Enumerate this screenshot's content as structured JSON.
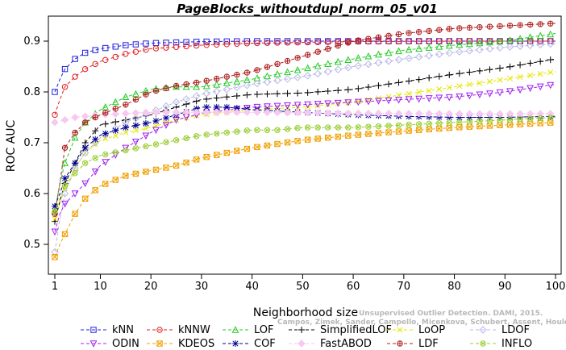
{
  "chart_data": {
    "type": "line",
    "title": "PageBlocks_withoutdupl_norm_05_v01",
    "xlabel": "Neighborhood size",
    "ylabel": "ROC AUC",
    "xlim": [
      0,
      100
    ],
    "ylim": [
      0.47,
      0.95
    ],
    "xticks": [
      1,
      10,
      20,
      30,
      40,
      50,
      60,
      70,
      80,
      90,
      100
    ],
    "yticks": [
      0.5,
      0.6,
      0.7,
      0.8,
      0.9
    ],
    "grid": false,
    "legend_position": "bottom",
    "watermark": [
      "Campos, Zimek, Sander, Campello, Micenkova, Schubert, Assent, Houle",
      "Unsupervised Outlier Detection. DAMI, 2015."
    ],
    "series": [
      {
        "name": "kNN",
        "color": "#1f1fe0",
        "marker": "square",
        "points": [
          [
            1,
            0.8
          ],
          [
            2,
            0.825
          ],
          [
            3,
            0.845
          ],
          [
            5,
            0.865
          ],
          [
            7,
            0.877
          ],
          [
            10,
            0.885
          ],
          [
            15,
            0.892
          ],
          [
            20,
            0.896
          ],
          [
            30,
            0.899
          ],
          [
            40,
            0.9
          ],
          [
            60,
            0.9
          ],
          [
            80,
            0.9
          ],
          [
            100,
            0.9
          ]
        ]
      },
      {
        "name": "kNNW",
        "color": "#e01f1f",
        "marker": "circle",
        "points": [
          [
            1,
            0.755
          ],
          [
            2,
            0.785
          ],
          [
            3,
            0.81
          ],
          [
            5,
            0.83
          ],
          [
            7,
            0.845
          ],
          [
            10,
            0.86
          ],
          [
            15,
            0.875
          ],
          [
            20,
            0.885
          ],
          [
            30,
            0.892
          ],
          [
            40,
            0.896
          ],
          [
            60,
            0.899
          ],
          [
            80,
            0.9
          ],
          [
            100,
            0.9
          ]
        ]
      },
      {
        "name": "LOF",
        "color": "#22cc22",
        "marker": "triangle-up",
        "points": [
          [
            1,
            0.565
          ],
          [
            2,
            0.62
          ],
          [
            3,
            0.66
          ],
          [
            5,
            0.71
          ],
          [
            7,
            0.74
          ],
          [
            10,
            0.765
          ],
          [
            15,
            0.79
          ],
          [
            20,
            0.805
          ],
          [
            25,
            0.81
          ],
          [
            30,
            0.81
          ],
          [
            40,
            0.825
          ],
          [
            50,
            0.845
          ],
          [
            60,
            0.865
          ],
          [
            70,
            0.882
          ],
          [
            80,
            0.892
          ],
          [
            90,
            0.9
          ],
          [
            100,
            0.915
          ]
        ]
      },
      {
        "name": "SimplifiedLOF",
        "color": "#000000",
        "marker": "plus",
        "points": [
          [
            1,
            0.545
          ],
          [
            2,
            0.585
          ],
          [
            3,
            0.62
          ],
          [
            5,
            0.66
          ],
          [
            7,
            0.7
          ],
          [
            10,
            0.735
          ],
          [
            15,
            0.745
          ],
          [
            20,
            0.755
          ],
          [
            25,
            0.77
          ],
          [
            30,
            0.785
          ],
          [
            40,
            0.795
          ],
          [
            50,
            0.798
          ],
          [
            60,
            0.805
          ],
          [
            70,
            0.82
          ],
          [
            80,
            0.835
          ],
          [
            90,
            0.848
          ],
          [
            100,
            0.865
          ]
        ]
      },
      {
        "name": "LoOP",
        "color": "#e6e600",
        "marker": "x",
        "points": [
          [
            1,
            0.55
          ],
          [
            2,
            0.58
          ],
          [
            3,
            0.61
          ],
          [
            5,
            0.65
          ],
          [
            7,
            0.68
          ],
          [
            10,
            0.705
          ],
          [
            15,
            0.72
          ],
          [
            20,
            0.73
          ],
          [
            25,
            0.745
          ],
          [
            30,
            0.755
          ],
          [
            40,
            0.765
          ],
          [
            50,
            0.77
          ],
          [
            60,
            0.78
          ],
          [
            70,
            0.795
          ],
          [
            80,
            0.81
          ],
          [
            90,
            0.825
          ],
          [
            100,
            0.84
          ]
        ]
      },
      {
        "name": "LDOF",
        "color": "#b8b8e8",
        "marker": "diamond",
        "points": [
          [
            1,
            0.485
          ],
          [
            2,
            0.55
          ],
          [
            3,
            0.6
          ],
          [
            5,
            0.65
          ],
          [
            7,
            0.68
          ],
          [
            10,
            0.71
          ],
          [
            15,
            0.74
          ],
          [
            20,
            0.76
          ],
          [
            25,
            0.78
          ],
          [
            30,
            0.795
          ],
          [
            40,
            0.815
          ],
          [
            50,
            0.83
          ],
          [
            60,
            0.85
          ],
          [
            70,
            0.865
          ],
          [
            80,
            0.878
          ],
          [
            90,
            0.888
          ],
          [
            100,
            0.895
          ]
        ]
      },
      {
        "name": "ODIN",
        "color": "#a020f0",
        "marker": "triangle-down",
        "points": [
          [
            1,
            0.525
          ],
          [
            2,
            0.56
          ],
          [
            3,
            0.58
          ],
          [
            5,
            0.6
          ],
          [
            7,
            0.62
          ],
          [
            10,
            0.655
          ],
          [
            15,
            0.69
          ],
          [
            20,
            0.72
          ],
          [
            25,
            0.745
          ],
          [
            30,
            0.758
          ],
          [
            40,
            0.77
          ],
          [
            50,
            0.775
          ],
          [
            60,
            0.78
          ],
          [
            70,
            0.785
          ],
          [
            80,
            0.79
          ],
          [
            90,
            0.8
          ],
          [
            100,
            0.815
          ]
        ]
      },
      {
        "name": "KDEOS",
        "color": "#f0a000",
        "marker": "square-x",
        "points": [
          [
            1,
            0.475
          ],
          [
            2,
            0.5
          ],
          [
            3,
            0.52
          ],
          [
            5,
            0.56
          ],
          [
            7,
            0.59
          ],
          [
            10,
            0.615
          ],
          [
            15,
            0.635
          ],
          [
            20,
            0.645
          ],
          [
            25,
            0.655
          ],
          [
            30,
            0.67
          ],
          [
            40,
            0.69
          ],
          [
            50,
            0.705
          ],
          [
            60,
            0.715
          ],
          [
            70,
            0.723
          ],
          [
            80,
            0.73
          ],
          [
            90,
            0.735
          ],
          [
            100,
            0.74
          ]
        ]
      },
      {
        "name": "COF",
        "color": "#000090",
        "marker": "star",
        "points": [
          [
            1,
            0.575
          ],
          [
            2,
            0.6
          ],
          [
            3,
            0.63
          ],
          [
            5,
            0.66
          ],
          [
            7,
            0.69
          ],
          [
            10,
            0.715
          ],
          [
            15,
            0.73
          ],
          [
            20,
            0.74
          ],
          [
            25,
            0.755
          ],
          [
            30,
            0.77
          ],
          [
            35,
            0.77
          ],
          [
            40,
            0.765
          ],
          [
            50,
            0.76
          ],
          [
            60,
            0.755
          ],
          [
            70,
            0.752
          ],
          [
            80,
            0.75
          ],
          [
            90,
            0.75
          ],
          [
            100,
            0.752
          ]
        ]
      },
      {
        "name": "FastABOD",
        "color": "#f7c8f0",
        "marker": "diamond-filled",
        "points": [
          [
            1,
            0.74
          ],
          [
            3,
            0.745
          ],
          [
            5,
            0.75
          ],
          [
            10,
            0.755
          ],
          [
            20,
            0.76
          ],
          [
            30,
            0.76
          ],
          [
            40,
            0.76
          ],
          [
            60,
            0.758
          ],
          [
            80,
            0.757
          ],
          [
            100,
            0.757
          ]
        ]
      },
      {
        "name": "LDF",
        "color": "#b02020",
        "marker": "circle-plus",
        "points": [
          [
            1,
            0.56
          ],
          [
            2,
            0.62
          ],
          [
            3,
            0.69
          ],
          [
            5,
            0.72
          ],
          [
            7,
            0.74
          ],
          [
            10,
            0.755
          ],
          [
            15,
            0.775
          ],
          [
            20,
            0.8
          ],
          [
            25,
            0.812
          ],
          [
            30,
            0.82
          ],
          [
            40,
            0.84
          ],
          [
            50,
            0.87
          ],
          [
            55,
            0.885
          ],
          [
            60,
            0.9
          ],
          [
            70,
            0.915
          ],
          [
            80,
            0.925
          ],
          [
            90,
            0.93
          ],
          [
            100,
            0.935
          ]
        ]
      },
      {
        "name": "INFLO",
        "color": "#9acd32",
        "marker": "circle-x",
        "points": [
          [
            1,
            0.565
          ],
          [
            2,
            0.59
          ],
          [
            3,
            0.615
          ],
          [
            5,
            0.64
          ],
          [
            7,
            0.66
          ],
          [
            10,
            0.675
          ],
          [
            15,
            0.685
          ],
          [
            20,
            0.695
          ],
          [
            25,
            0.705
          ],
          [
            30,
            0.715
          ],
          [
            35,
            0.72
          ],
          [
            40,
            0.725
          ],
          [
            45,
            0.725
          ],
          [
            50,
            0.73
          ],
          [
            60,
            0.73
          ],
          [
            70,
            0.735
          ],
          [
            80,
            0.74
          ],
          [
            90,
            0.745
          ],
          [
            100,
            0.75
          ]
        ]
      }
    ],
    "legend_order": [
      "kNN",
      "kNNW",
      "LOF",
      "SimplifiedLOF",
      "LoOP",
      "LDOF",
      "ODIN",
      "KDEOS",
      "COF",
      "FastABOD",
      "LDF",
      "INFLO"
    ]
  }
}
